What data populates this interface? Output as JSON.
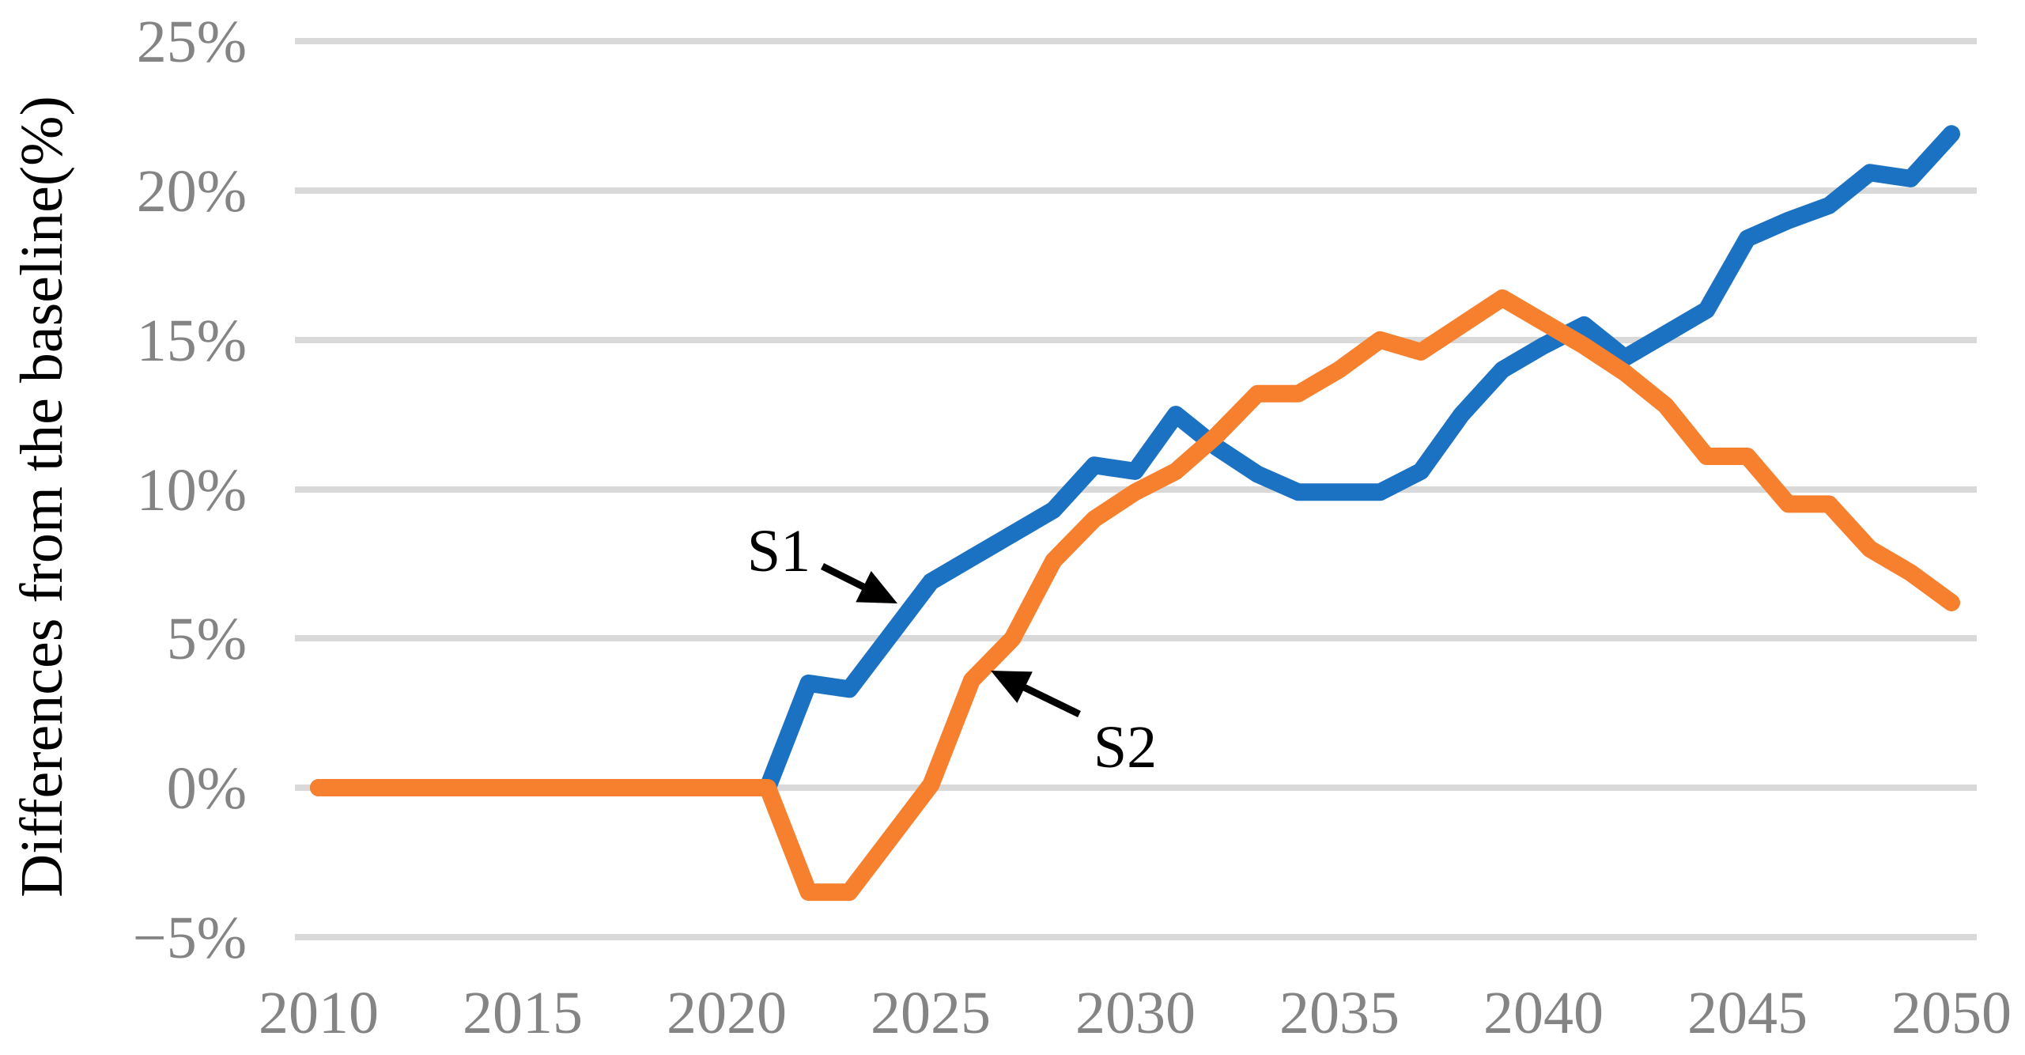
{
  "chart_data": {
    "type": "line",
    "title": "",
    "ylabel": "Differences from the baseline(%)",
    "xlabel": "",
    "ylim": [
      -5,
      25
    ],
    "xlim": [
      2010,
      2050
    ],
    "grid": "horizontal-only",
    "legend": "none (inline annotations with arrows)",
    "ytick_labels": [
      "25%",
      "20%",
      "15%",
      "10%",
      "5%",
      "0%",
      "−5%"
    ],
    "ytick_values": [
      25,
      20,
      15,
      10,
      5,
      0,
      -5
    ],
    "xtick_labels": [
      "2010",
      "2015",
      "2020",
      "2025",
      "2030",
      "2035",
      "2040",
      "2045",
      "2050"
    ],
    "xtick_values": [
      2010,
      2015,
      2020,
      2025,
      2030,
      2035,
      2040,
      2045,
      2050
    ],
    "x": [
      2010,
      2011,
      2012,
      2013,
      2014,
      2015,
      2016,
      2017,
      2018,
      2019,
      2020,
      2021,
      2022,
      2023,
      2024,
      2025,
      2026,
      2027,
      2028,
      2029,
      2030,
      2031,
      2032,
      2033,
      2034,
      2035,
      2036,
      2037,
      2038,
      2039,
      2040,
      2041,
      2042,
      2043,
      2044,
      2045,
      2046,
      2047,
      2048,
      2049,
      2050
    ],
    "series": [
      {
        "name": "S1",
        "color": "#1c72c2",
        "values": [
          0,
          0,
          0,
          0,
          0,
          0,
          0,
          0,
          0,
          0,
          0,
          0,
          3.5,
          3.3,
          5.1,
          6.9,
          7.7,
          8.5,
          9.3,
          10.8,
          10.6,
          12.5,
          11.4,
          10.5,
          9.9,
          9.9,
          9.9,
          10.6,
          12.5,
          14.0,
          14.8,
          15.5,
          14.4,
          15.2,
          16.0,
          18.4,
          19.0,
          19.5,
          20.6,
          20.4,
          21.9
        ]
      },
      {
        "name": "S2",
        "color": "#f6802e",
        "values": [
          0,
          0,
          0,
          0,
          0,
          0,
          0,
          0,
          0,
          0,
          0,
          0,
          -3.5,
          -3.5,
          -1.7,
          0.1,
          3.6,
          5.0,
          7.6,
          9.0,
          9.9,
          10.6,
          11.8,
          13.2,
          13.2,
          14.0,
          15.0,
          14.6,
          15.5,
          16.4,
          15.6,
          14.8,
          13.9,
          12.8,
          11.1,
          11.1,
          9.5,
          9.5,
          8.0,
          7.2,
          6.2
        ]
      }
    ],
    "annotations": [
      {
        "label": "S1",
        "points_to_series": "S1",
        "points_to_year_approx": 2024
      },
      {
        "label": "S2",
        "points_to_series": "S2",
        "points_to_year_approx": 2026
      }
    ],
    "colors": {
      "s1_line": "#1c72c2",
      "s2_line": "#f6802e",
      "gridline": "#d9d9d9",
      "tick_label": "#848484",
      "annotation": "#000000",
      "background": "#ffffff"
    }
  }
}
